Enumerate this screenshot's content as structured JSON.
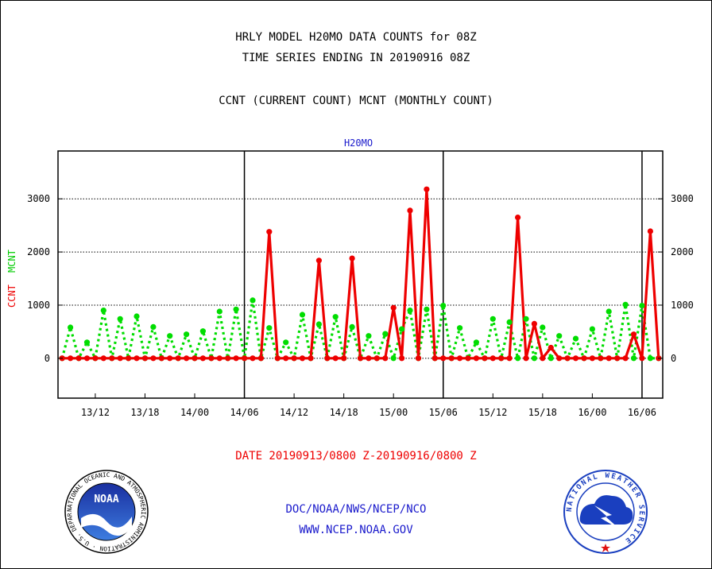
{
  "header": {
    "title_line1": "HRLY MODEL H20MO DATA COUNTS for 08Z",
    "title_line2": "TIME SERIES ENDING IN 20190916 08Z",
    "subtitle": "CCNT (CURRENT COUNT) MCNT (MONTHLY COUNT)"
  },
  "footer": {
    "date_range": "DATE 20190913/0800 Z-20190916/0800 Z",
    "org_path": "DOC/NOAA/NWS/NCEP/NCO",
    "website": "WWW.NCEP.NOAA.GOV"
  },
  "logos": {
    "noaa_text": "NOAA",
    "noaa_ring": "NATIONAL OCEANIC AND ATMOSPHERIC ADMINISTRATION · U.S. DEPARTMENT OF COMMERCE ·",
    "nws_ring": "NATIONAL WEATHER SERVICE"
  },
  "colors": {
    "ccnt": "#ee0000",
    "mcnt": "#00dd00",
    "blue_text": "#1a1acc"
  },
  "chart_data": {
    "type": "line",
    "panel_label": "H20MO",
    "ylabel_parts": [
      "CCNT",
      "MCNT"
    ],
    "ylim": [
      -750,
      3900
    ],
    "yticks": [
      0,
      1000,
      2000,
      3000
    ],
    "x_start_hour": 0,
    "x_end_hour": 72,
    "x_axis_range_hours": [
      -0.5,
      72.5
    ],
    "xticks": [
      {
        "hour": 4,
        "label": "13/12"
      },
      {
        "hour": 10,
        "label": "13/18"
      },
      {
        "hour": 16,
        "label": "14/00"
      },
      {
        "hour": 22,
        "label": "14/06"
      },
      {
        "hour": 28,
        "label": "14/12"
      },
      {
        "hour": 34,
        "label": "14/18"
      },
      {
        "hour": 40,
        "label": "15/00"
      },
      {
        "hour": 46,
        "label": "15/06"
      },
      {
        "hour": 52,
        "label": "15/12"
      },
      {
        "hour": 58,
        "label": "15/18"
      },
      {
        "hour": 64,
        "label": "16/00"
      },
      {
        "hour": 70,
        "label": "16/06"
      }
    ],
    "day_boundaries_hours": [
      22,
      46,
      70
    ],
    "grid": "horizontal dotted",
    "series": [
      {
        "name": "CCNT",
        "color": "#ee0000",
        "values": [
          0,
          0,
          0,
          0,
          0,
          0,
          0,
          0,
          0,
          0,
          0,
          0,
          0,
          0,
          0,
          0,
          0,
          0,
          0,
          0,
          0,
          0,
          0,
          0,
          0,
          2380,
          0,
          0,
          0,
          0,
          0,
          1840,
          0,
          0,
          0,
          1880,
          0,
          0,
          0,
          0,
          950,
          0,
          2780,
          0,
          3180,
          0,
          0,
          0,
          0,
          0,
          0,
          0,
          0,
          0,
          0,
          2650,
          0,
          650,
          0,
          200,
          0,
          0,
          0,
          0,
          0,
          0,
          0,
          0,
          0,
          450,
          0,
          2390,
          0
        ]
      },
      {
        "name": "MCNT",
        "color": "#00dd00",
        "values": [
          0,
          580,
          0,
          300,
          0,
          900,
          0,
          740,
          0,
          790,
          0,
          590,
          0,
          420,
          0,
          450,
          0,
          510,
          0,
          880,
          0,
          920,
          0,
          1090,
          0,
          570,
          0,
          300,
          0,
          820,
          0,
          640,
          0,
          780,
          0,
          590,
          0,
          420,
          0,
          460,
          0,
          550,
          900,
          0,
          920,
          0,
          990,
          0,
          570,
          0,
          300,
          0,
          740,
          0,
          680,
          0,
          740,
          0,
          580,
          0,
          420,
          0,
          370,
          0,
          550,
          0,
          880,
          0,
          1010,
          0,
          990,
          0,
          0
        ]
      }
    ]
  }
}
